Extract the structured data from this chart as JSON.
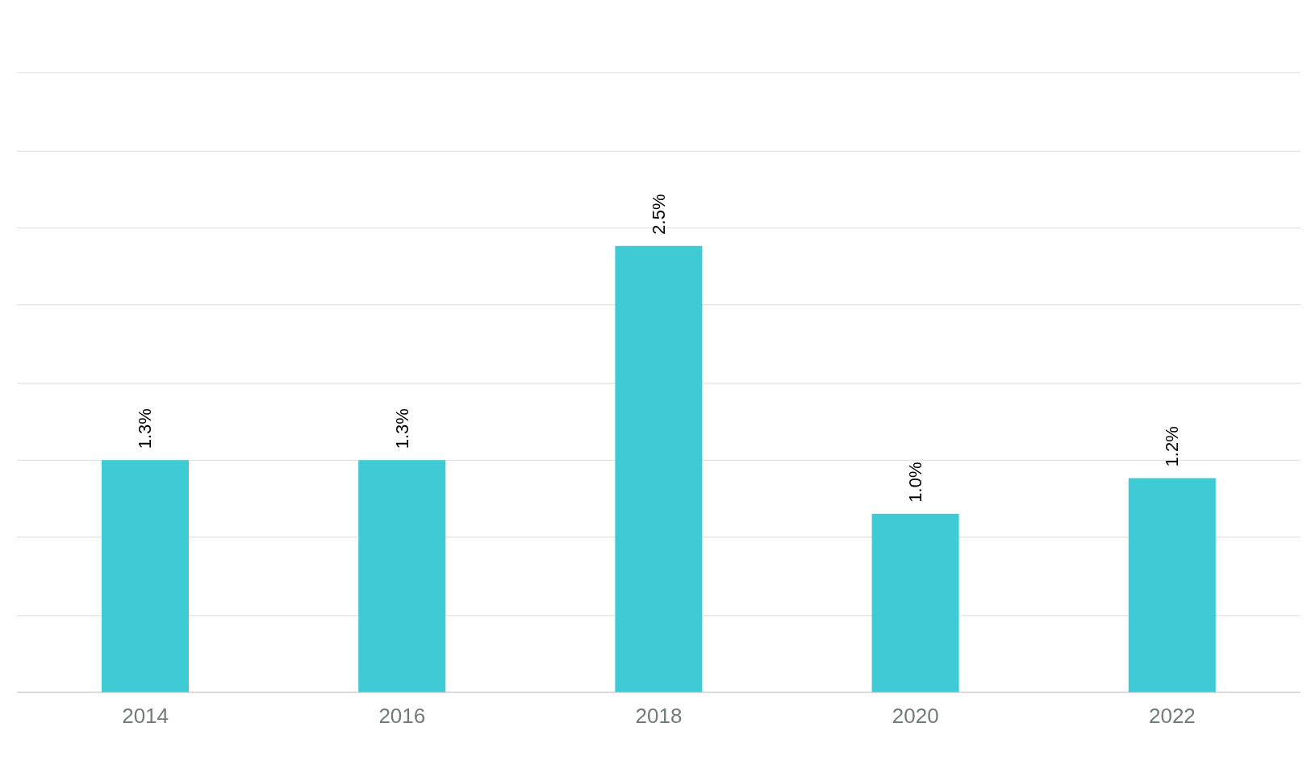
{
  "chart_data": {
    "type": "bar",
    "categories": [
      "2014",
      "2016",
      "2018",
      "2020",
      "2022"
    ],
    "values": [
      1.3,
      1.3,
      2.5,
      1.0,
      1.2
    ],
    "value_labels": [
      "1.3%",
      "1.3%",
      "2.5%",
      "1.0%",
      "1.2%"
    ],
    "color": "#3ecbd5",
    "ylim": [
      0,
      3.47
    ],
    "yticks": [
      {
        "value": 0,
        "label": null
      },
      {
        "value": 0.43,
        "label": null
      },
      {
        "value": 0.87,
        "label": null
      },
      {
        "value": 1.3,
        "label": null
      },
      {
        "value": 1.73,
        "label": null
      },
      {
        "value": 2.17,
        "label": null
      },
      {
        "value": 2.6,
        "label": null
      },
      {
        "value": 3.03,
        "label": null
      },
      {
        "value": 3.47,
        "label": null
      }
    ],
    "grid": "y",
    "tick_labels": "x"
  }
}
